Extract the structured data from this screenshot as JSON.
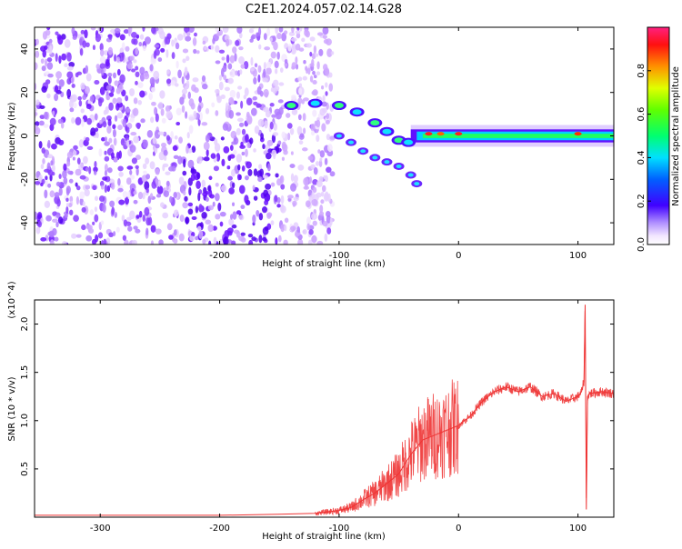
{
  "title": "C2E1.2024.057.02.14.G28",
  "charts": {
    "spectrogram": {
      "type": "heatmap",
      "xlabel": "Height of straight line (km)",
      "ylabel": "Frequency (Hz)",
      "xlim": [
        -355,
        130
      ],
      "ylim": [
        -50,
        50
      ],
      "xticks": [
        -300,
        -200,
        -100,
        0,
        100
      ],
      "yticks": [
        -40,
        -20,
        0,
        20,
        40
      ],
      "colorbar": {
        "label": "Normalized spectral amplitude",
        "range": [
          0.0,
          1.0
        ],
        "ticks": [
          "0.0",
          "0.2",
          "0.4",
          "0.6",
          "0.8"
        ]
      }
    },
    "snr": {
      "type": "line",
      "xlabel": "Height of straight line (km)",
      "ylabel": "SNR (10 * v/v)",
      "y_multiplier": "(x10^4)",
      "xlim": [
        -355,
        130
      ],
      "ylim": [
        0,
        22500
      ],
      "xticks": [
        -300,
        -200,
        -100,
        0,
        100
      ],
      "yticks": [
        "0.5",
        "1.0",
        "1.5",
        "2.0"
      ],
      "line_color": "#ee3333",
      "series": [
        {
          "x": [
            -355,
            -300,
            -250,
            -200,
            -150,
            -120,
            -100,
            -90,
            -80,
            -70,
            -60,
            -50,
            -40,
            -30,
            -20,
            -10,
            0,
            10,
            20,
            30,
            40,
            50,
            60,
            70,
            80,
            90,
            100,
            103,
            105,
            106,
            107,
            108,
            110,
            120,
            130
          ],
          "y": [
            200,
            200,
            200,
            200,
            300,
            400,
            700,
            1000,
            1800,
            2500,
            3500,
            4500,
            6500,
            8000,
            8500,
            9000,
            9500,
            10500,
            12000,
            13000,
            13500,
            13000,
            13500,
            12500,
            12800,
            12000,
            12500,
            13000,
            14000,
            22000,
            800,
            12500,
            12800,
            13000,
            12800
          ]
        }
      ]
    }
  }
}
